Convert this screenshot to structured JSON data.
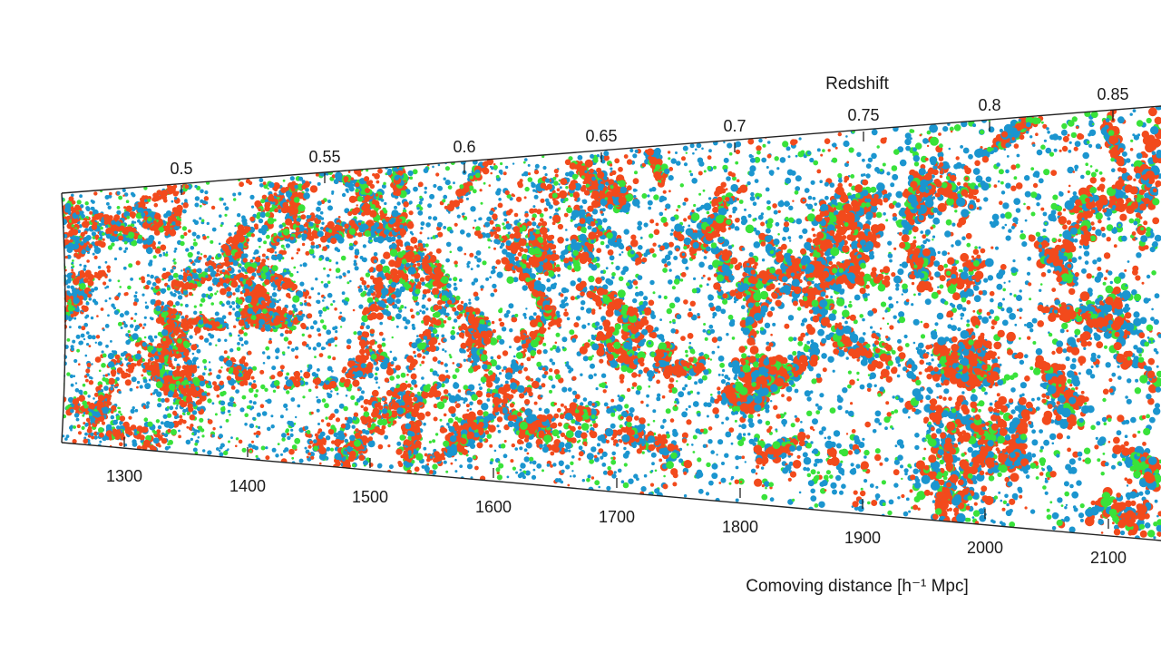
{
  "chart_data": {
    "type": "scatter",
    "title": "",
    "top_axis": {
      "label": "Redshift",
      "ticks": [
        "0.5",
        "0.55",
        "0.6",
        "0.65",
        "0.7",
        "0.75",
        "0.8",
        "0.85"
      ],
      "tick_positions": [
        [
          200,
          204
        ],
        [
          358,
          191
        ],
        [
          512,
          180
        ],
        [
          663,
          168
        ],
        [
          810,
          157
        ],
        [
          952,
          145
        ],
        [
          1091,
          134
        ],
        [
          1227,
          122
        ]
      ]
    },
    "bottom_axis": {
      "label": "Comoving distance [h⁻¹ Mpc]",
      "ticks": [
        "1300",
        "1400",
        "1500",
        "1600",
        "1700",
        "1800",
        "1900",
        "2000",
        "2100"
      ],
      "tick_positions": [
        [
          137,
          493
        ],
        [
          273,
          504
        ],
        [
          408,
          516
        ],
        [
          544,
          527
        ],
        [
          680,
          538
        ],
        [
          816,
          549
        ],
        [
          951,
          561
        ],
        [
          1086,
          572
        ],
        [
          1222,
          583
        ]
      ],
      "range": [
        1250,
        2150
      ]
    },
    "wedge": {
      "top_left": [
        68,
        213
      ],
      "top_right": [
        1280,
        117
      ],
      "bottom_left": [
        68,
        488
      ],
      "bottom_right": [
        1280,
        596
      ]
    },
    "series": [
      {
        "name": "red galaxies (dense clusters)",
        "color": "#f24a1c"
      },
      {
        "name": "blue galaxies",
        "color": "#1b95cf"
      },
      {
        "name": "green galaxies",
        "color": "#39e23a"
      }
    ],
    "grid": false,
    "legend": "none",
    "description": "Wedge-shaped slice of the cosmic web showing galaxy distribution from redshift ~0.48 to ~0.87 (comoving distance ~1250 to ~2150 h^-1 Mpc)"
  }
}
